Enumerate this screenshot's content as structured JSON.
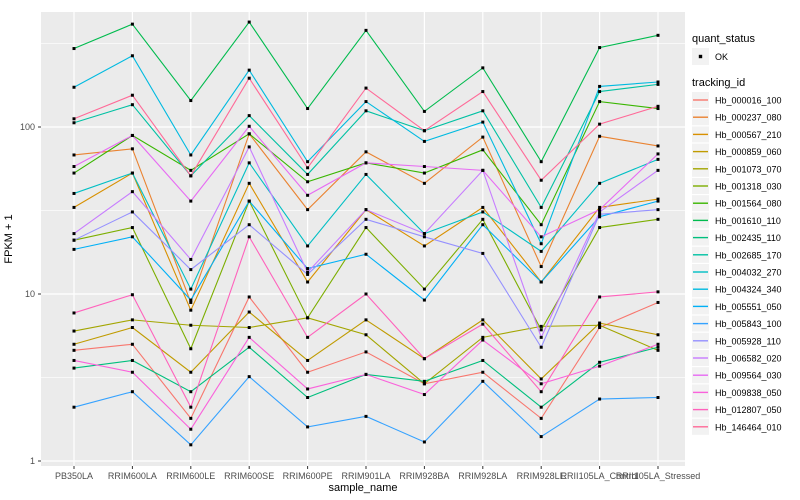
{
  "figure": {
    "background": "#FFFFFF",
    "panel_background": "#EBEBEB",
    "grid_color": "#FFFFFF",
    "tick_label_color": "#4D4D4D",
    "point_color": "#000000"
  },
  "chart_data": {
    "type": "line",
    "title": "",
    "xlabel": "sample_name",
    "ylabel": "FPKM + 1",
    "y_scale": "log10",
    "ylim": [
      0.85,
      480
    ],
    "y_ticks": [
      "1",
      "10",
      "100"
    ],
    "y_minor_breaks": [
      3.16,
      31.6,
      316
    ],
    "grid": "on",
    "legend_position": "right",
    "categories": [
      "PB350LA",
      "RRIM600LA",
      "RRIM600LE",
      "RRIM600SE",
      "RRIM600PE",
      "RRIM901LA",
      "RRIM928BA",
      "RRIM928LA",
      "RRIM928LE",
      "RRII105LA_Control",
      "RRII105LA_Stressed"
    ],
    "series": [
      {
        "name": "Hb_000016_100",
        "color": "#F8766D",
        "values": [
          4.6,
          5.0,
          1.8,
          9.6,
          3.4,
          4.5,
          2.9,
          3.4,
          1.8,
          6.3,
          8.9
        ]
      },
      {
        "name": "Hb_000237_080",
        "color": "#EA8331",
        "values": [
          68,
          74,
          8.9,
          91,
          32,
          71,
          46,
          87,
          14.6,
          88,
          77
        ]
      },
      {
        "name": "Hb_000567_210",
        "color": "#D89000",
        "values": [
          33,
          53,
          8.0,
          46,
          11.8,
          32,
          19.4,
          33,
          11.8,
          33,
          37
        ]
      },
      {
        "name": "Hb_000859_060",
        "color": "#C09B00",
        "values": [
          5.0,
          6.3,
          3.4,
          7.8,
          4.0,
          7.0,
          4.1,
          7.0,
          3.1,
          6.7,
          5.7
        ]
      },
      {
        "name": "Hb_001073_070",
        "color": "#A3A500",
        "values": [
          6.0,
          7.0,
          6.5,
          6.3,
          7.2,
          5.7,
          2.9,
          5.5,
          6.4,
          6.5,
          4.6
        ]
      },
      {
        "name": "Hb_001318_030",
        "color": "#7CAE00",
        "values": [
          21,
          25,
          4.7,
          36,
          7.2,
          25,
          10.7,
          28,
          6.1,
          25,
          28
        ]
      },
      {
        "name": "Hb_001564_080",
        "color": "#39B600",
        "values": [
          53,
          89,
          55,
          91,
          47,
          61,
          53,
          73,
          26,
          142,
          129
        ]
      },
      {
        "name": "Hb_001610_110",
        "color": "#00BB4E",
        "values": [
          295,
          413,
          144,
          425,
          129,
          379,
          124,
          226,
          62,
          299,
          354
        ]
      },
      {
        "name": "Hb_002435_110",
        "color": "#00BF7D",
        "values": [
          3.6,
          4.0,
          2.6,
          4.8,
          2.4,
          3.3,
          3.0,
          4.0,
          2.1,
          3.9,
          4.8
        ]
      },
      {
        "name": "Hb_002685_170",
        "color": "#00C1A3",
        "values": [
          106,
          136,
          51,
          117,
          52,
          125,
          95,
          125,
          33,
          163,
          180
        ]
      },
      {
        "name": "Hb_004032_270",
        "color": "#00BFC4",
        "values": [
          40,
          53,
          10.7,
          61,
          19.4,
          52,
          23,
          31,
          18,
          46,
          64
        ]
      },
      {
        "name": "Hb_004324_340",
        "color": "#00BAE0",
        "values": [
          173,
          267,
          68,
          219,
          62,
          142,
          82,
          107,
          20,
          175,
          186
        ]
      },
      {
        "name": "Hb_005551_050",
        "color": "#00B0F6",
        "values": [
          18.5,
          22,
          9.2,
          36,
          14.2,
          17.3,
          9.2,
          26,
          11.8,
          29,
          36
        ]
      },
      {
        "name": "Hb_005843_100",
        "color": "#35A2FF",
        "values": [
          2.1,
          2.6,
          1.25,
          3.2,
          1.6,
          1.85,
          1.3,
          3.0,
          1.4,
          2.35,
          2.4
        ]
      },
      {
        "name": "Hb_005928_110",
        "color": "#9590FF",
        "values": [
          21,
          31,
          14,
          26,
          13.1,
          28,
          22,
          17.5,
          4.8,
          30,
          32
        ]
      },
      {
        "name": "Hb_006582_020",
        "color": "#C77CFF",
        "values": [
          23,
          41,
          16.1,
          76,
          13.5,
          32,
          23,
          55,
          5.5,
          31,
          55
        ]
      },
      {
        "name": "Hb_009564_030",
        "color": "#E76BF3",
        "values": [
          58,
          89,
          36,
          101,
          39,
          61,
          58,
          55,
          22,
          32,
          69
        ]
      },
      {
        "name": "Hb_009838_050",
        "color": "#FA62DB",
        "values": [
          4.0,
          3.4,
          1.55,
          5.5,
          2.7,
          3.3,
          2.5,
          5.3,
          2.9,
          3.7,
          5.0
        ]
      },
      {
        "name": "Hb_012807_050",
        "color": "#FF62BC",
        "values": [
          7.7,
          9.9,
          2.1,
          22,
          5.5,
          10,
          4.1,
          6.6,
          2.6,
          9.6,
          10.3
        ]
      },
      {
        "name": "Hb_146464_010",
        "color": "#FF6A98",
        "values": [
          112,
          155,
          51,
          196,
          57,
          171,
          95,
          163,
          48,
          104,
          133
        ]
      }
    ]
  },
  "legend": {
    "quant_status_title": "quant_status",
    "quant_status_items": [
      {
        "label": "OK",
        "marker": "black-point-icon"
      }
    ],
    "tracking_id_title": "tracking_id"
  }
}
